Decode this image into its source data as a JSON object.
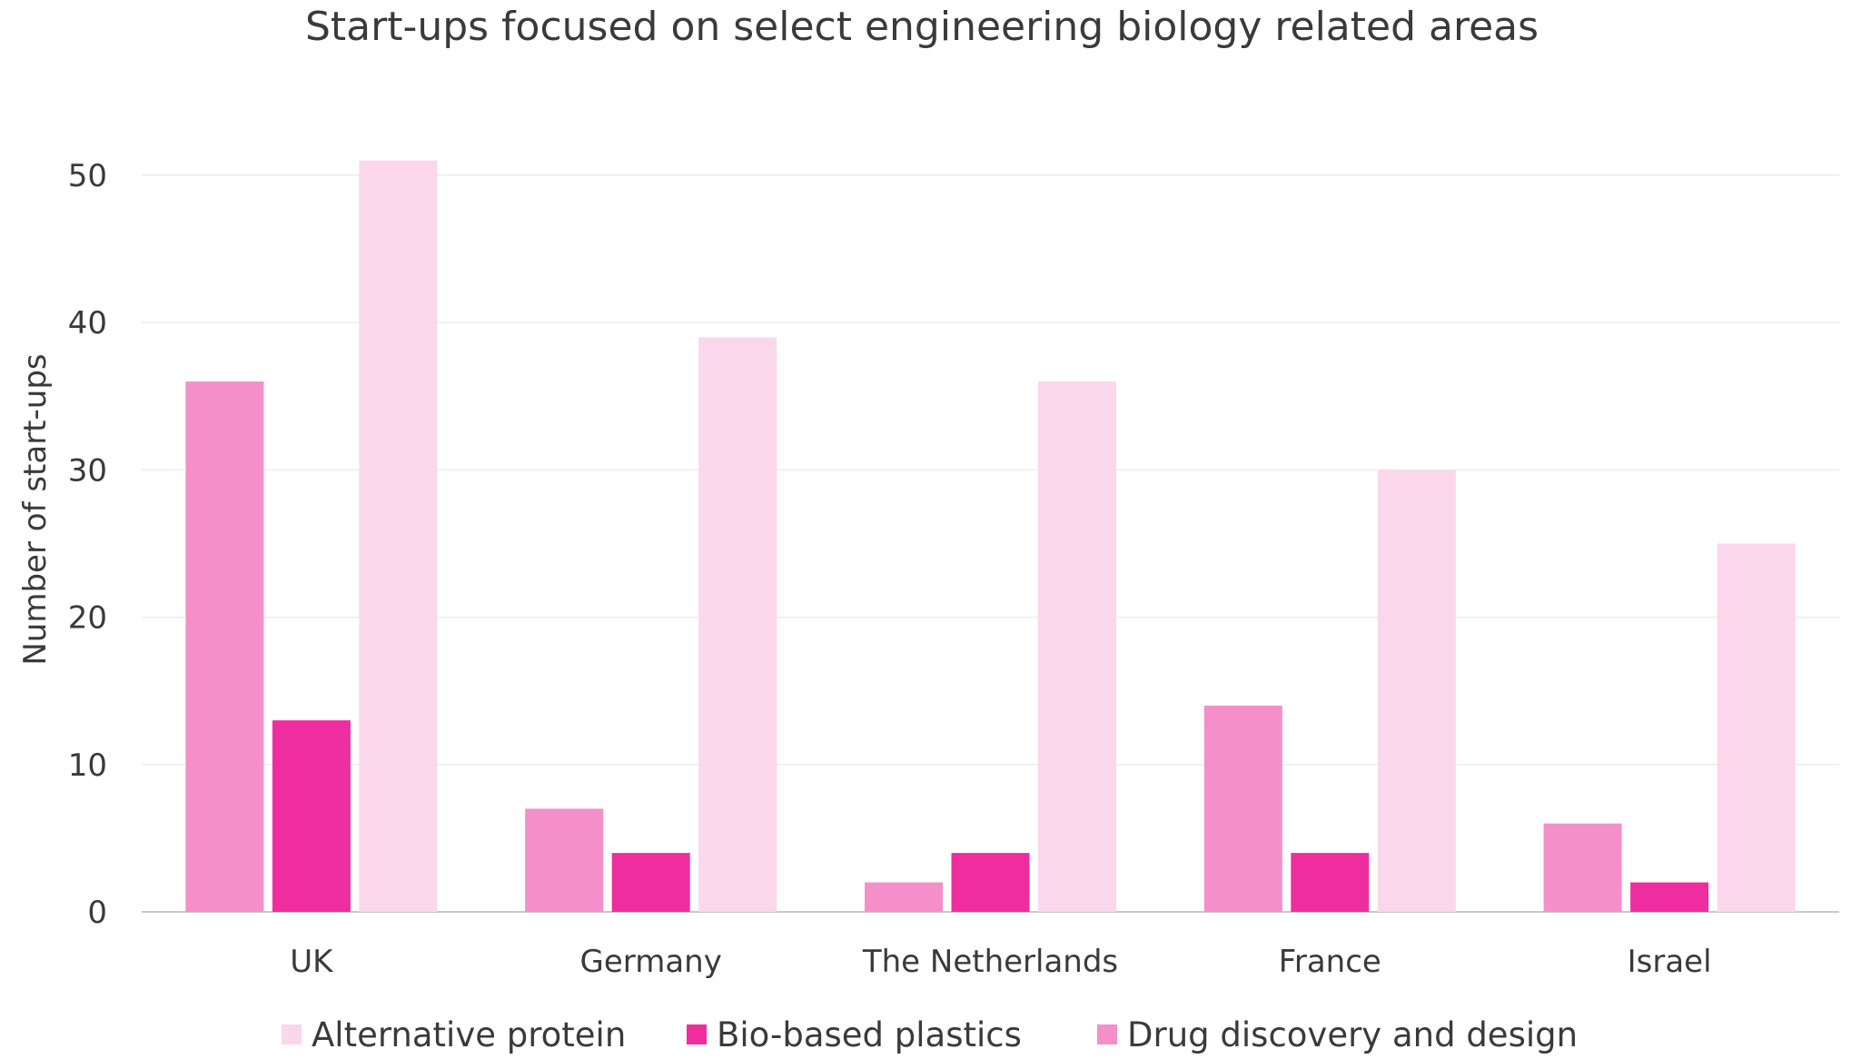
{
  "chart_data": {
    "type": "bar",
    "title": "Start-ups focused on select engineering biology related areas",
    "xlabel": "",
    "ylabel": "Number of start-ups",
    "categories": [
      "UK",
      "Germany",
      "The Netherlands",
      "France",
      "Israel"
    ],
    "series": [
      {
        "name": "Drug discovery and design",
        "color": "#f48fca",
        "values": [
          36,
          7,
          2,
          14,
          6
        ]
      },
      {
        "name": "Bio-based plastics",
        "color": "#ee2e9e",
        "values": [
          13,
          4,
          4,
          4,
          2
        ]
      },
      {
        "name": "Alternative protein",
        "color": "#fad7eb",
        "values": [
          51,
          39,
          36,
          30,
          25
        ]
      }
    ],
    "legend_order": [
      2,
      1,
      0
    ],
    "ylim": [
      0,
      50
    ],
    "yticks": [
      0,
      10,
      20,
      30,
      40,
      50
    ],
    "grid": true,
    "legend_position": "bottom"
  }
}
